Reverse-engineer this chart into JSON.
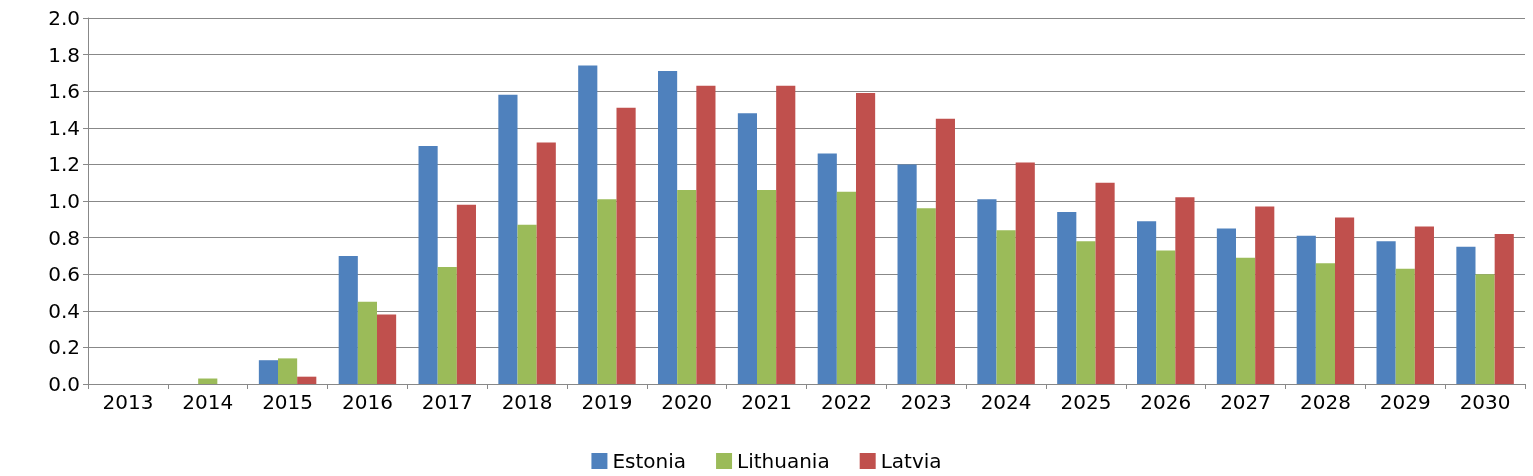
{
  "chart_data": {
    "type": "bar",
    "categories": [
      "2013",
      "2014",
      "2015",
      "2016",
      "2017",
      "2018",
      "2019",
      "2020",
      "2021",
      "2022",
      "2023",
      "2024",
      "2025",
      "2026",
      "2027",
      "2028",
      "2029",
      "2030"
    ],
    "series": [
      {
        "name": "Estonia",
        "color": "#4f81bd",
        "values": [
          0,
          0,
          0.13,
          0.7,
          1.3,
          1.58,
          1.74,
          1.71,
          1.48,
          1.26,
          1.2,
          1.01,
          0.94,
          0.89,
          0.85,
          0.81,
          0.78,
          0.75
        ]
      },
      {
        "name": "Lithuania",
        "color": "#9bbb59",
        "values": [
          0,
          0.03,
          0.14,
          0.45,
          0.64,
          0.87,
          1.01,
          1.06,
          1.06,
          1.05,
          0.96,
          0.84,
          0.78,
          0.73,
          0.69,
          0.66,
          0.63,
          0.6
        ]
      },
      {
        "name": "Latvia",
        "color": "#c0504d",
        "values": [
          0,
          0,
          0.04,
          0.38,
          0.98,
          1.32,
          1.51,
          1.63,
          1.63,
          1.59,
          1.45,
          1.21,
          1.1,
          1.02,
          0.97,
          0.91,
          0.86,
          0.82
        ]
      }
    ],
    "ylim": [
      0,
      2
    ],
    "yticks": [
      {
        "value": 0,
        "label": "0.0"
      },
      {
        "value": 0.2,
        "label": "0.2"
      },
      {
        "value": 0.4,
        "label": "0.4"
      },
      {
        "value": 0.6,
        "label": "0.6"
      },
      {
        "value": 0.8,
        "label": "0.8"
      },
      {
        "value": 1,
        "label": "1.0"
      },
      {
        "value": 1.2,
        "label": "1.2"
      },
      {
        "value": 1.4,
        "label": "1.4"
      },
      {
        "value": 1.6,
        "label": "1.6"
      },
      {
        "value": 1.8,
        "label": "1.8"
      },
      {
        "value": 2,
        "label": "2.0"
      }
    ],
    "grid": "y",
    "legend": "bottom"
  }
}
